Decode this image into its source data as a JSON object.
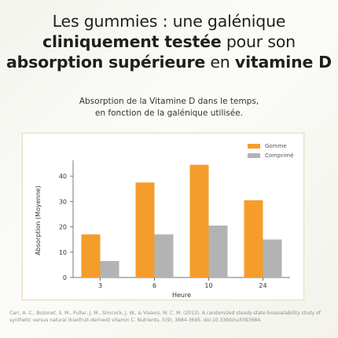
{
  "headline": {
    "line1": "Les gummies : une galénique",
    "line2_bold": "cliniquement testée",
    "line2_rest": " pour son",
    "line3_bold1": "absorption supérieure",
    "line3_mid": " en ",
    "line3_bold2": "vitamine D"
  },
  "subtitle": {
    "line1": "Absorption de la Vitamine D dans le temps,",
    "line2": "en fonction de la galénique utilisée."
  },
  "chart_data": {
    "type": "bar",
    "title": "",
    "xlabel": "Heure",
    "ylabel": "Absorption (Moyenne)",
    "categories": [
      "3",
      "6",
      "10",
      "24"
    ],
    "ylim": [
      0,
      45
    ],
    "yticks": [
      0,
      10,
      20,
      30,
      40
    ],
    "grid": false,
    "legend_position": "top-right",
    "series": [
      {
        "name": "Gomme",
        "color": "#f59d2a",
        "values": [
          17,
          37.5,
          44.5,
          30.5
        ]
      },
      {
        "name": "Comprimé",
        "color": "#b3b3b3",
        "values": [
          6.5,
          17,
          20.5,
          15
        ]
      }
    ]
  },
  "citation": "Carr, A. C., Bozonet, S. M., Pullar, J. M., Simcock, J. W., & Vissers, M. C. M. (2013). A randomized steady-state bioavailability study of synthetic versus natural (kiwifruit-derived) vitamin C. Nutrients, 5(9), 3684-3695. doi:10.3390/nu5093684."
}
